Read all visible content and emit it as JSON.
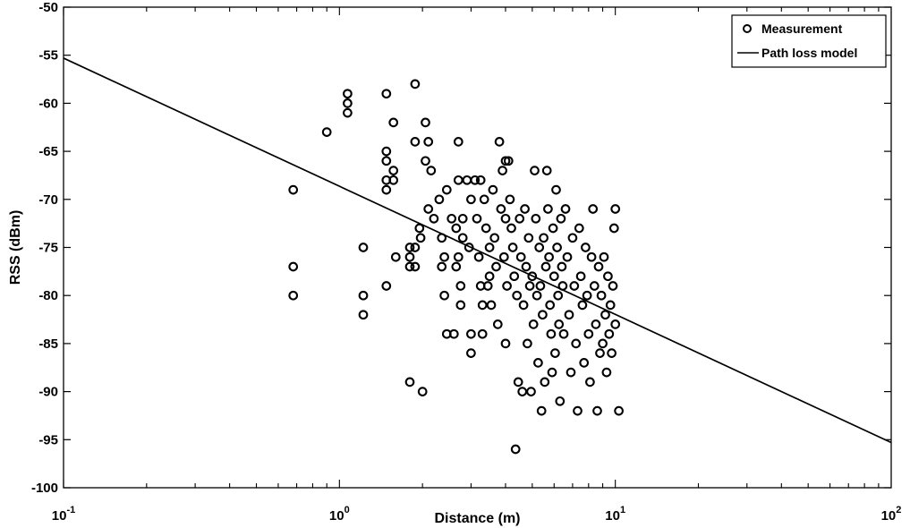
{
  "chart_data": {
    "type": "scatter",
    "xlabel": "Distance (m)",
    "ylabel": "RSS (dBm)",
    "xscale": "log",
    "xlim": [
      0.1,
      100
    ],
    "ylim": [
      -100,
      -50
    ],
    "xticks": [
      {
        "value": 0.1,
        "base": "10",
        "exp": "-1"
      },
      {
        "value": 1,
        "base": "10",
        "exp": "0"
      },
      {
        "value": 10,
        "base": "10",
        "exp": "1"
      },
      {
        "value": 100,
        "base": "10",
        "exp": "2"
      }
    ],
    "yticks": [
      "-50",
      "-55",
      "-60",
      "-65",
      "-70",
      "-75",
      "-80",
      "-85",
      "-90",
      "-95",
      "-100"
    ],
    "grid": false,
    "legend": {
      "position": "top-right",
      "entries": [
        {
          "label": "Measurement",
          "marker": "circle"
        },
        {
          "label": "Path loss model",
          "marker": "line"
        }
      ]
    },
    "series": [
      {
        "name": "Measurement",
        "style": "circle",
        "color": "#000000",
        "points": [
          [
            0.68,
            -69
          ],
          [
            0.68,
            -77
          ],
          [
            0.68,
            -80
          ],
          [
            0.9,
            -63
          ],
          [
            1.07,
            -59
          ],
          [
            1.07,
            -60
          ],
          [
            1.07,
            -61
          ],
          [
            1.22,
            -75
          ],
          [
            1.22,
            -80
          ],
          [
            1.22,
            -82
          ],
          [
            1.48,
            -59
          ],
          [
            1.48,
            -65
          ],
          [
            1.48,
            -66
          ],
          [
            1.48,
            -68
          ],
          [
            1.48,
            -69
          ],
          [
            1.48,
            -79
          ],
          [
            1.57,
            -62
          ],
          [
            1.57,
            -67
          ],
          [
            1.57,
            -68
          ],
          [
            1.6,
            -76
          ],
          [
            1.8,
            -75
          ],
          [
            1.8,
            -76
          ],
          [
            1.8,
            -77
          ],
          [
            1.8,
            -89
          ],
          [
            1.88,
            -58
          ],
          [
            1.88,
            -64
          ],
          [
            1.88,
            -75
          ],
          [
            1.88,
            -77
          ],
          [
            1.95,
            -73
          ],
          [
            1.97,
            -74
          ],
          [
            2.0,
            -90
          ],
          [
            2.05,
            -62
          ],
          [
            2.05,
            -66
          ],
          [
            2.1,
            -64
          ],
          [
            2.1,
            -71
          ],
          [
            2.15,
            -67
          ],
          [
            2.2,
            -72
          ],
          [
            2.3,
            -70
          ],
          [
            2.35,
            -74
          ],
          [
            2.35,
            -77
          ],
          [
            2.4,
            -76
          ],
          [
            2.4,
            -80
          ],
          [
            2.45,
            -69
          ],
          [
            2.45,
            -84
          ],
          [
            2.55,
            -72
          ],
          [
            2.6,
            -84
          ],
          [
            2.65,
            -73
          ],
          [
            2.65,
            -77
          ],
          [
            2.7,
            -64
          ],
          [
            2.7,
            -68
          ],
          [
            2.7,
            -76
          ],
          [
            2.75,
            -79
          ],
          [
            2.75,
            -81
          ],
          [
            2.8,
            -72
          ],
          [
            2.8,
            -74
          ],
          [
            2.9,
            -68
          ],
          [
            2.95,
            -75
          ],
          [
            3.0,
            -70
          ],
          [
            3.0,
            -84
          ],
          [
            3.0,
            -86
          ],
          [
            3.1,
            -68
          ],
          [
            3.15,
            -72
          ],
          [
            3.2,
            -76
          ],
          [
            3.25,
            -68
          ],
          [
            3.25,
            -79
          ],
          [
            3.3,
            -81
          ],
          [
            3.3,
            -84
          ],
          [
            3.35,
            -70
          ],
          [
            3.4,
            -73
          ],
          [
            3.45,
            -79
          ],
          [
            3.5,
            -75
          ],
          [
            3.5,
            -78
          ],
          [
            3.55,
            -81
          ],
          [
            3.6,
            -69
          ],
          [
            3.65,
            -74
          ],
          [
            3.7,
            -77
          ],
          [
            3.75,
            -83
          ],
          [
            3.8,
            -64
          ],
          [
            3.85,
            -71
          ],
          [
            3.9,
            -67
          ],
          [
            3.95,
            -76
          ],
          [
            4.0,
            -66
          ],
          [
            4.0,
            -72
          ],
          [
            4.0,
            -85
          ],
          [
            4.05,
            -79
          ],
          [
            4.1,
            -66
          ],
          [
            4.15,
            -70
          ],
          [
            4.2,
            -73
          ],
          [
            4.25,
            -75
          ],
          [
            4.3,
            -78
          ],
          [
            4.35,
            -96
          ],
          [
            4.4,
            -80
          ],
          [
            4.45,
            -89
          ],
          [
            4.5,
            -72
          ],
          [
            4.55,
            -76
          ],
          [
            4.6,
            -90
          ],
          [
            4.65,
            -81
          ],
          [
            4.7,
            -71
          ],
          [
            4.75,
            -77
          ],
          [
            4.8,
            -85
          ],
          [
            4.85,
            -74
          ],
          [
            4.9,
            -79
          ],
          [
            4.95,
            -90
          ],
          [
            5.0,
            -78
          ],
          [
            5.05,
            -83
          ],
          [
            5.1,
            -67
          ],
          [
            5.15,
            -72
          ],
          [
            5.2,
            -80
          ],
          [
            5.25,
            -87
          ],
          [
            5.3,
            -75
          ],
          [
            5.35,
            -79
          ],
          [
            5.4,
            -92
          ],
          [
            5.45,
            -82
          ],
          [
            5.5,
            -74
          ],
          [
            5.55,
            -89
          ],
          [
            5.6,
            -77
          ],
          [
            5.65,
            -67
          ],
          [
            5.7,
            -71
          ],
          [
            5.75,
            -76
          ],
          [
            5.8,
            -81
          ],
          [
            5.85,
            -84
          ],
          [
            5.9,
            -88
          ],
          [
            5.95,
            -73
          ],
          [
            6.0,
            -78
          ],
          [
            6.05,
            -86
          ],
          [
            6.1,
            -69
          ],
          [
            6.15,
            -75
          ],
          [
            6.2,
            -80
          ],
          [
            6.25,
            -83
          ],
          [
            6.3,
            -91
          ],
          [
            6.35,
            -72
          ],
          [
            6.4,
            -77
          ],
          [
            6.45,
            -79
          ],
          [
            6.5,
            -84
          ],
          [
            6.6,
            -71
          ],
          [
            6.7,
            -76
          ],
          [
            6.8,
            -82
          ],
          [
            6.9,
            -88
          ],
          [
            7.0,
            -74
          ],
          [
            7.1,
            -79
          ],
          [
            7.2,
            -85
          ],
          [
            7.3,
            -92
          ],
          [
            7.4,
            -73
          ],
          [
            7.5,
            -78
          ],
          [
            7.6,
            -81
          ],
          [
            7.7,
            -87
          ],
          [
            7.8,
            -75
          ],
          [
            7.9,
            -80
          ],
          [
            8.0,
            -84
          ],
          [
            8.1,
            -89
          ],
          [
            8.2,
            -76
          ],
          [
            8.3,
            -71
          ],
          [
            8.4,
            -79
          ],
          [
            8.5,
            -83
          ],
          [
            8.6,
            -92
          ],
          [
            8.7,
            -77
          ],
          [
            8.8,
            -86
          ],
          [
            8.9,
            -80
          ],
          [
            9.0,
            -85
          ],
          [
            9.1,
            -76
          ],
          [
            9.2,
            -82
          ],
          [
            9.3,
            -88
          ],
          [
            9.4,
            -78
          ],
          [
            9.5,
            -84
          ],
          [
            9.6,
            -81
          ],
          [
            9.7,
            -86
          ],
          [
            9.8,
            -79
          ],
          [
            9.9,
            -73
          ],
          [
            10.0,
            -71
          ],
          [
            10.0,
            -83
          ],
          [
            10.3,
            -92
          ]
        ]
      },
      {
        "name": "Path loss model",
        "style": "line",
        "color": "#000000",
        "x": [
          0.1,
          100
        ],
        "y": [
          -55.3,
          -95.3
        ]
      }
    ]
  }
}
